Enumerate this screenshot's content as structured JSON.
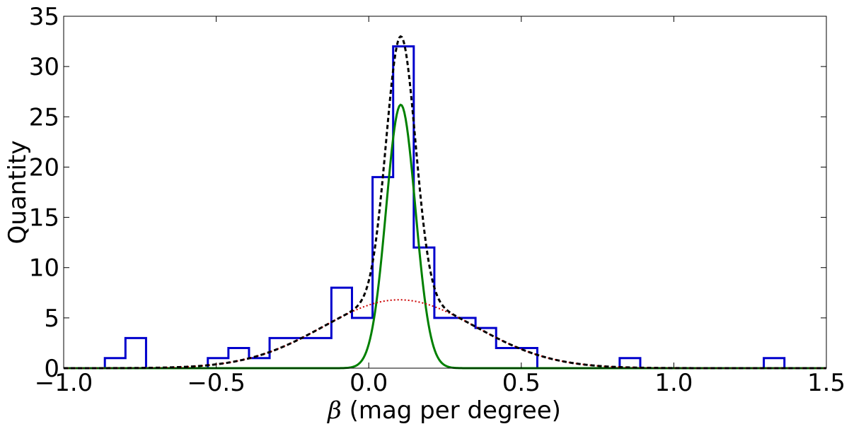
{
  "chart_data": {
    "type": "line",
    "title": "",
    "xlabel_symbol": "β",
    "xlabel_rest": " (mag per degree)",
    "ylabel": "Quantity",
    "xlim": [
      -1.0,
      1.5
    ],
    "ylim": [
      0,
      35
    ],
    "x_ticks": [
      -1.0,
      -0.5,
      0.0,
      0.5,
      1.0,
      1.5
    ],
    "x_tick_labels": [
      "−1.0",
      "−0.5",
      "0.0",
      "0.5",
      "1.0",
      "1.5"
    ],
    "y_ticks": [
      0,
      5,
      10,
      15,
      20,
      25,
      30,
      35
    ],
    "y_tick_labels": [
      "0",
      "5",
      "10",
      "15",
      "20",
      "25",
      "30",
      "35"
    ],
    "grid": false,
    "legend": "none",
    "histogram": {
      "color": "#0000cc",
      "bin_width": 0.0675,
      "bins": [
        {
          "x0": -1.0,
          "count": 0
        },
        {
          "x0": -0.9325,
          "count": 0
        },
        {
          "x0": -0.865,
          "count": 1
        },
        {
          "x0": -0.7975,
          "count": 3
        },
        {
          "x0": -0.73,
          "count": 0
        },
        {
          "x0": -0.6625,
          "count": 0
        },
        {
          "x0": -0.595,
          "count": 0
        },
        {
          "x0": -0.5275,
          "count": 1
        },
        {
          "x0": -0.46,
          "count": 2
        },
        {
          "x0": -0.3925,
          "count": 1
        },
        {
          "x0": -0.325,
          "count": 3
        },
        {
          "x0": -0.2575,
          "count": 3
        },
        {
          "x0": -0.19,
          "count": 3
        },
        {
          "x0": -0.1225,
          "count": 8
        },
        {
          "x0": -0.055,
          "count": 5
        },
        {
          "x0": 0.0125,
          "count": 19
        },
        {
          "x0": 0.08,
          "count": 32
        },
        {
          "x0": 0.1475,
          "count": 12
        },
        {
          "x0": 0.215,
          "count": 5
        },
        {
          "x0": 0.2825,
          "count": 5
        },
        {
          "x0": 0.35,
          "count": 4
        },
        {
          "x0": 0.4175,
          "count": 2
        },
        {
          "x0": 0.485,
          "count": 2
        },
        {
          "x0": 0.5525,
          "count": 0
        },
        {
          "x0": 0.62,
          "count": 0
        },
        {
          "x0": 0.6875,
          "count": 0
        },
        {
          "x0": 0.755,
          "count": 0
        },
        {
          "x0": 0.8225,
          "count": 1
        },
        {
          "x0": 0.89,
          "count": 0
        },
        {
          "x0": 0.9575,
          "count": 0
        },
        {
          "x0": 1.025,
          "count": 0
        },
        {
          "x0": 1.0925,
          "count": 0
        },
        {
          "x0": 1.16,
          "count": 0
        },
        {
          "x0": 1.2275,
          "count": 0
        },
        {
          "x0": 1.295,
          "count": 1
        }
      ]
    },
    "series": [
      {
        "style": "solid",
        "color": "#008000",
        "gaussian": {
          "amplitude": 26.2,
          "mean": 0.105,
          "sigma": 0.048
        }
      },
      {
        "style": "dotted",
        "color": "#cc0000",
        "gaussian": {
          "amplitude": 6.8,
          "mean": 0.1,
          "sigma": 0.25
        }
      },
      {
        "style": "dashed",
        "color": "#000000",
        "sum_of": [
          0,
          1
        ]
      }
    ]
  }
}
